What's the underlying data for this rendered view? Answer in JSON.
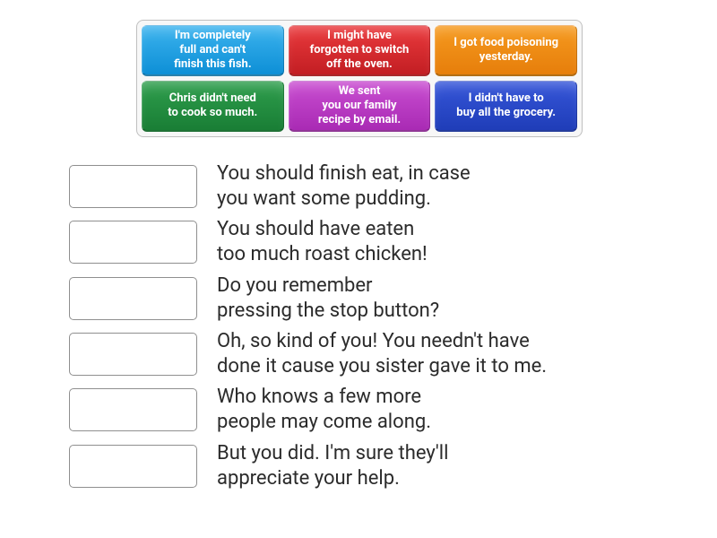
{
  "bank": {
    "border_color": "#bfbfbf",
    "background": "#f7f7f7",
    "cards": [
      {
        "label": "I'm completely\nfull and can't\nfinish this fish.",
        "bg_top": "#3cb3ee",
        "bg_bot": "#0d8fd6"
      },
      {
        "label": "I might have\nforgotten to switch\noff the oven.",
        "bg_top": "#ea3a3d",
        "bg_bot": "#c21e23"
      },
      {
        "label": "I got food poisoning\nyesterday.",
        "bg_top": "#f69a1f",
        "bg_bot": "#e67e0b"
      },
      {
        "label": "Chris didn't need\nto cook so much.",
        "bg_top": "#2f9e4d",
        "bg_bot": "#197e35"
      },
      {
        "label": "We sent\nyou our family\nrecipe by email.",
        "bg_top": "#c94ed1",
        "bg_bot": "#a92ab4"
      },
      {
        "label": "I didn't have to\nbuy all the grocery.",
        "bg_top": "#3656d9",
        "bg_bot": "#1f3db8"
      }
    ]
  },
  "prompts": [
    "You should finish eat, in case\nyou want some pudding.",
    "You should have eaten\ntoo much roast chicken!",
    "Do you remember\npressing the stop button?",
    "Oh, so kind of you! You needn't have\ndone it cause you sister gave it to me.",
    "Who knows a few more\npeople may come along.",
    "But you did. I'm sure they'll\nappreciate your help."
  ],
  "slot_border": "#8f8f8f",
  "text_color": "#2b2b2b"
}
